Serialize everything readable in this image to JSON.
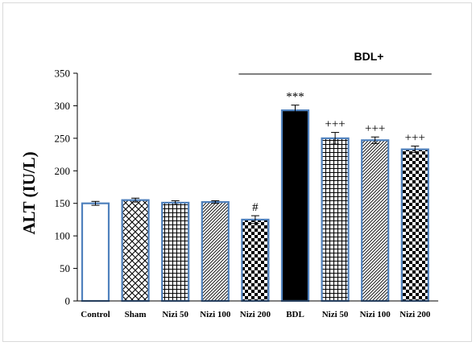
{
  "chart_data": {
    "type": "bar",
    "ylabel": "ALT (IU/L)",
    "xlabel": "",
    "ylim": [
      0,
      350
    ],
    "yticks": [
      0,
      50,
      100,
      150,
      200,
      250,
      300,
      350
    ],
    "grid": false,
    "legend": "none",
    "group_label": "BDL+",
    "categories": [
      "Control",
      "Sham",
      "Nizi 50",
      "Nizi 100",
      "Nizi 200",
      "BDL",
      "Nizi 50",
      "Nizi 100",
      "Nizi 200"
    ],
    "values": [
      150,
      155,
      151,
      152,
      125,
      293,
      250,
      247,
      233
    ],
    "errors": [
      3,
      3,
      3,
      2,
      6,
      8,
      9,
      5,
      5
    ],
    "annotations": [
      "",
      "",
      "",
      "",
      "#",
      "***",
      "+++",
      "+++",
      "+++"
    ],
    "patterns": [
      "none",
      "lattice",
      "grid",
      "diagonal",
      "checker",
      "solid",
      "grid",
      "diagonal",
      "checker"
    ],
    "colors": {
      "bar_border": "#4f81bd",
      "bar_fill": "#000000",
      "axis": "#000000"
    }
  }
}
